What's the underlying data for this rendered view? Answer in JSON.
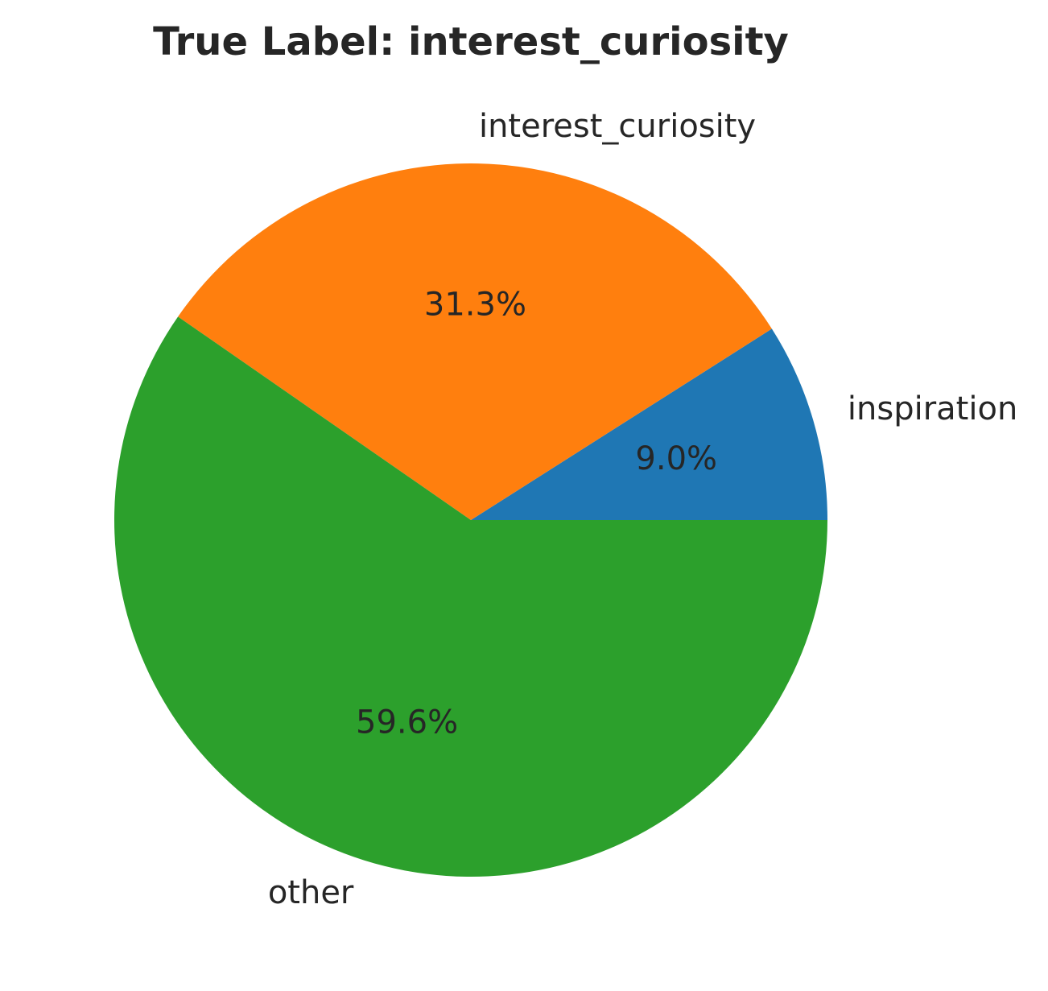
{
  "chart_data": {
    "type": "pie",
    "title": "True Label: interest_curiosity",
    "slices": [
      {
        "label": "inspiration",
        "value": 9.0,
        "pct_label": "9.0%",
        "color": "#1f77b4"
      },
      {
        "label": "interest_curiosity",
        "value": 31.3,
        "pct_label": "31.3%",
        "color": "#ff7f0e"
      },
      {
        "label": "other",
        "value": 59.6,
        "pct_label": "59.6%",
        "color": "#2ca02c"
      }
    ],
    "start_angle_deg": 0,
    "direction": "counterclockwise"
  }
}
